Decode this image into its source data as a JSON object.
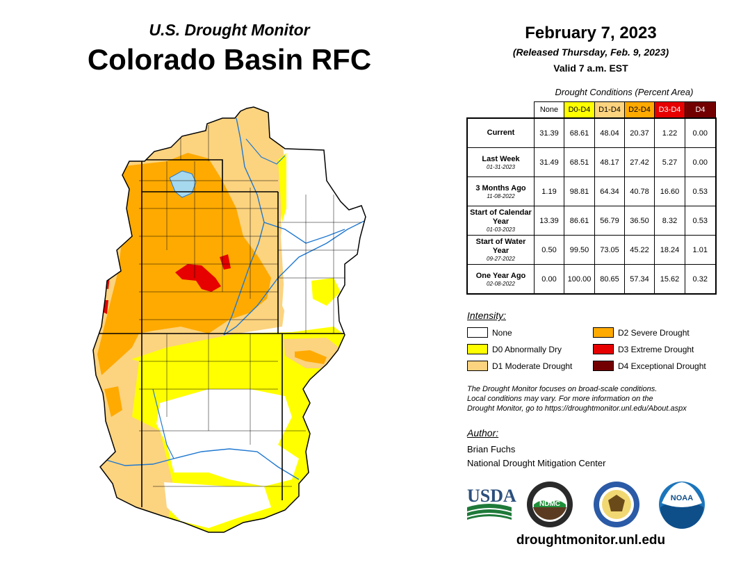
{
  "header": {
    "subtitle": "U.S. Drought Monitor",
    "title": "Colorado Basin RFC"
  },
  "release": {
    "date": "February 7, 2023",
    "released": "(Released Thursday, Feb. 9, 2023)",
    "valid": "Valid 7 a.m. EST"
  },
  "table": {
    "caption": "Drought Conditions (Percent Area)",
    "columns": [
      {
        "label": "None",
        "color": "#ffffff",
        "text_color": "#000000"
      },
      {
        "label": "D0-D4",
        "color": "#ffff00",
        "text_color": "#000000"
      },
      {
        "label": "D1-D4",
        "color": "#fcd37f",
        "text_color": "#000000"
      },
      {
        "label": "D2-D4",
        "color": "#ffaa00",
        "text_color": "#000000"
      },
      {
        "label": "D3-D4",
        "color": "#e60000",
        "text_color": "#ffffff"
      },
      {
        "label": "D4",
        "color": "#730000",
        "text_color": "#ffffff"
      }
    ],
    "rows": [
      {
        "label": "Current",
        "date": "",
        "values": [
          "31.39",
          "68.61",
          "48.04",
          "20.37",
          "1.22",
          "0.00"
        ]
      },
      {
        "label": "Last Week",
        "date": "01-31-2023",
        "values": [
          "31.49",
          "68.51",
          "48.17",
          "27.42",
          "5.27",
          "0.00"
        ]
      },
      {
        "label": "3 Months Ago",
        "date": "11-08-2022",
        "values": [
          "1.19",
          "98.81",
          "64.34",
          "40.78",
          "16.60",
          "0.53"
        ]
      },
      {
        "label": "Start of Calendar Year",
        "date": "01-03-2023",
        "values": [
          "13.39",
          "86.61",
          "56.79",
          "36.50",
          "8.32",
          "0.53"
        ]
      },
      {
        "label": "Start of Water Year",
        "date": "09-27-2022",
        "values": [
          "0.50",
          "99.50",
          "73.05",
          "45.22",
          "18.24",
          "1.01"
        ]
      },
      {
        "label": "One Year Ago",
        "date": "02-08-2022",
        "values": [
          "0.00",
          "100.00",
          "80.65",
          "57.34",
          "15.62",
          "0.32"
        ]
      }
    ]
  },
  "legend": {
    "heading": "Intensity:",
    "items": [
      {
        "label": "None",
        "color": "#ffffff"
      },
      {
        "label": "D0 Abnormally Dry",
        "color": "#ffff00"
      },
      {
        "label": "D1 Moderate Drought",
        "color": "#fcd37f"
      },
      {
        "label": "D2 Severe Drought",
        "color": "#ffaa00"
      },
      {
        "label": "D3 Extreme Drought",
        "color": "#e60000"
      },
      {
        "label": "D4 Exceptional Drought",
        "color": "#730000"
      }
    ]
  },
  "note": {
    "line1": "The Drought Monitor focuses on broad-scale conditions.",
    "line2": "Local conditions may vary. For more information on the",
    "line3": "Drought Monitor, go to https://droughtmonitor.unl.edu/About.aspx"
  },
  "author": {
    "heading": "Author:",
    "name": "Brian Fuchs",
    "org": "National Drought Mitigation Center"
  },
  "logos": {
    "usda": "USDA",
    "ndmc": "NDMC",
    "noaa": "NOAA"
  },
  "map": {
    "water_color": "#1f78d1",
    "lake_color": "#a6d8ee",
    "border_color": "#000000"
  },
  "footer": {
    "site": "droughtmonitor.unl.edu"
  }
}
